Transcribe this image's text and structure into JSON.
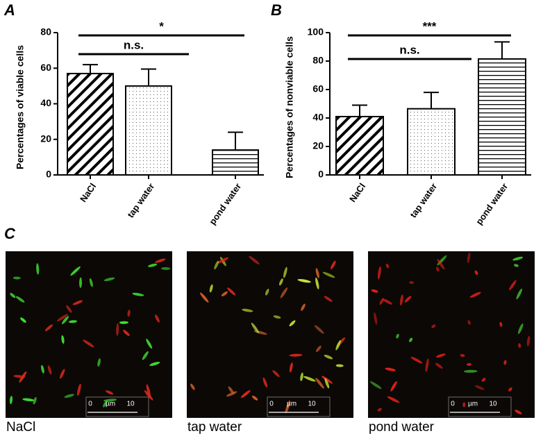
{
  "panel_labels": [
    "A",
    "B",
    "C"
  ],
  "chart_data": [
    {
      "type": "bar",
      "ylabel": "Percentages of viable cells",
      "categories": [
        "NaCl",
        "tap water",
        "pond water"
      ],
      "values": [
        57,
        50,
        14
      ],
      "errors": [
        5,
        9.5,
        10
      ],
      "hatch": [
        "diagonal",
        "dots",
        "horizontal"
      ],
      "color": "#000000",
      "ylim": [
        0,
        80
      ],
      "yticks": [
        0,
        20,
        40,
        60,
        80
      ],
      "annotations": [
        {
          "text": "*",
          "from": 0,
          "to": 2
        },
        {
          "text": "n.s.",
          "from": 0,
          "to": 1
        }
      ]
    },
    {
      "type": "bar",
      "ylabel": "Percentages of nonviable cells",
      "categories": [
        "NaCl",
        "tap water",
        "pond water"
      ],
      "values": [
        41,
        46.5,
        81.5
      ],
      "errors": [
        8,
        11.5,
        12
      ],
      "hatch": [
        "diagonal",
        "dots",
        "horizontal"
      ],
      "color": "#000000",
      "ylim": [
        0,
        100
      ],
      "yticks": [
        0,
        20,
        40,
        60,
        80,
        100
      ],
      "annotations": [
        {
          "text": "***",
          "from": 0,
          "to": 2
        },
        {
          "text": "n.s.",
          "from": 0,
          "to": 1
        }
      ]
    }
  ],
  "images": [
    {
      "caption": "NaCl"
    },
    {
      "caption": "tap water"
    },
    {
      "caption": "pond water"
    }
  ],
  "scale_bar": {
    "start": "0",
    "unit": "µm",
    "end": "10"
  }
}
